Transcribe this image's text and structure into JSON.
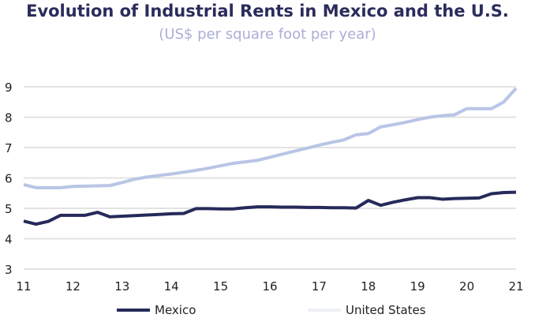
{
  "chart_data": {
    "type": "line",
    "title": "Evolution of Industrial Rents in Mexico and the U.S.",
    "subtitle": "(US$ per square foot per year)",
    "xlim": [
      11,
      21
    ],
    "ylim": [
      3,
      9
    ],
    "x_ticks": [
      "11",
      "12",
      "13",
      "14",
      "15",
      "16",
      "17",
      "18",
      "19",
      "20",
      "21"
    ],
    "y_ticks": [
      "3",
      "4",
      "5",
      "6",
      "7",
      "8",
      "9"
    ],
    "grid": "horizontal",
    "legend": "bottom",
    "x": [
      11,
      11.25,
      11.5,
      11.75,
      12,
      12.25,
      12.5,
      12.75,
      13,
      13.25,
      13.5,
      13.75,
      14,
      14.25,
      14.5,
      14.75,
      15,
      15.25,
      15.5,
      15.75,
      16,
      16.25,
      16.5,
      16.75,
      17,
      17.25,
      17.5,
      17.75,
      18,
      18.25,
      18.5,
      18.75,
      19,
      19.25,
      19.5,
      19.75,
      20,
      20.25,
      20.5,
      20.75,
      21
    ],
    "series": [
      {
        "name": "Mexico",
        "color": "#262a5a",
        "values": [
          4.58,
          4.48,
          4.57,
          4.77,
          4.77,
          4.77,
          4.87,
          4.72,
          4.74,
          4.76,
          4.78,
          4.8,
          4.82,
          4.83,
          4.99,
          4.99,
          4.98,
          4.98,
          5.02,
          5.05,
          5.05,
          5.04,
          5.04,
          5.03,
          5.03,
          5.02,
          5.02,
          5.01,
          5.26,
          5.1,
          5.2,
          5.28,
          5.35,
          5.35,
          5.3,
          5.32,
          5.33,
          5.34,
          5.48,
          5.52,
          5.53
        ]
      },
      {
        "name": "United States",
        "color": "#b9c5e6",
        "legend_color": "#eef0f7",
        "values": [
          5.78,
          5.68,
          5.68,
          5.68,
          5.72,
          5.73,
          5.74,
          5.75,
          5.85,
          5.96,
          6.03,
          6.08,
          6.13,
          6.19,
          6.25,
          6.32,
          6.4,
          6.48,
          6.53,
          6.58,
          6.68,
          6.78,
          6.88,
          6.98,
          7.08,
          7.17,
          7.25,
          7.42,
          7.46,
          7.68,
          7.75,
          7.83,
          7.92,
          8.0,
          8.05,
          8.08,
          8.28,
          8.28,
          8.28,
          8.5,
          8.95
        ]
      }
    ]
  }
}
